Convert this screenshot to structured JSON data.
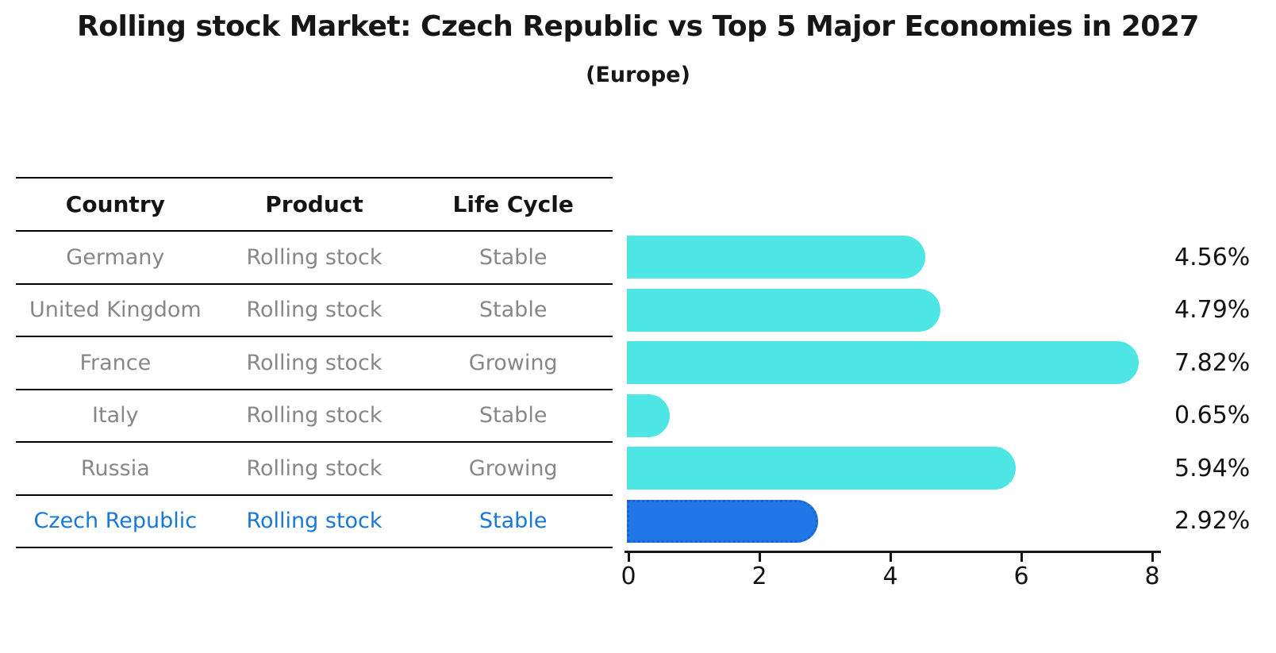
{
  "title": "Rolling stock Market: Czech Republic vs Top 5 Major Economies in 2027",
  "subtitle": "(Europe)",
  "table": {
    "headers": [
      "Country",
      "Product",
      "Life Cycle"
    ],
    "rows": [
      {
        "country": "Germany",
        "product": "Rolling stock",
        "life_cycle": "Stable",
        "value": 4.56,
        "label": "4.56%",
        "highlight": false
      },
      {
        "country": "United Kingdom",
        "product": "Rolling stock",
        "life_cycle": "Stable",
        "value": 4.79,
        "label": "4.79%",
        "highlight": false
      },
      {
        "country": "France",
        "product": "Rolling stock",
        "life_cycle": "Growing",
        "value": 7.82,
        "label": "7.82%",
        "highlight": false
      },
      {
        "country": "Italy",
        "product": "Rolling stock",
        "life_cycle": "Stable",
        "value": 0.65,
        "label": "0.65%",
        "highlight": false
      },
      {
        "country": "Russia",
        "product": "Rolling stock",
        "life_cycle": "Growing",
        "value": 5.94,
        "label": "5.94%",
        "highlight": false
      },
      {
        "country": "Czech Republic",
        "product": "Rolling stock",
        "life_cycle": "Stable",
        "value": 2.92,
        "label": "2.92%",
        "highlight": true
      }
    ]
  },
  "chart_data": {
    "type": "bar",
    "orientation": "horizontal",
    "title": "Rolling stock Market: Czech Republic vs Top 5 Major Economies in 2027",
    "subtitle": "(Europe)",
    "categories": [
      "Germany",
      "United Kingdom",
      "France",
      "Italy",
      "Russia",
      "Czech Republic"
    ],
    "values": [
      4.56,
      4.79,
      7.82,
      0.65,
      5.94,
      2.92
    ],
    "value_labels": [
      "4.56%",
      "4.79%",
      "7.82%",
      "0.65%",
      "5.94%",
      "2.92%"
    ],
    "xlabel": "",
    "ylabel": "",
    "xlim": [
      0,
      8.2
    ],
    "xticks": [
      0,
      2,
      4,
      6,
      8
    ],
    "grid": false,
    "legend": false,
    "highlight_index": 5,
    "bar_color": "#4de6e4",
    "highlight_color": "#2277e6",
    "highlight_border_color": "#1b63cf",
    "highlight_text_color": "#1878d8",
    "text_color": "#141414",
    "muted_text_color": "#878787"
  }
}
